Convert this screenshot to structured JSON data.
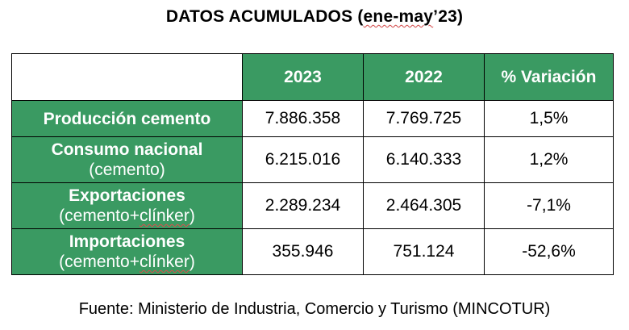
{
  "title": {
    "prefix": "DATOS ACUMULADOS (",
    "period": "ene-may",
    "suffix": "’23)"
  },
  "table": {
    "headers": [
      "",
      "2023",
      "2022",
      "% Variación"
    ],
    "rows": [
      {
        "label": "Producción cemento",
        "sublabel": "",
        "v2023": "7.886.358",
        "v2022": "7.769.725",
        "variation": "1,5%"
      },
      {
        "label": "Consumo nacional",
        "sublabel": "(cemento)",
        "v2023": "6.215.016",
        "v2022": "6.140.333",
        "variation": "1,2%"
      },
      {
        "label": "Exportaciones",
        "sublabel_prefix": "(cemento+",
        "sublabel_word": "clínker",
        "sublabel_suffix": ")",
        "v2023": "2.289.234",
        "v2022": "2.464.305",
        "variation": "-7,1%"
      },
      {
        "label": "Importaciones",
        "sublabel_prefix": "(cemento+",
        "sublabel_word": "clínker",
        "sublabel_suffix": ")",
        "v2023": "355.946",
        "v2022": "751.124",
        "variation": "-52,6%"
      }
    ]
  },
  "source": "Fuente: Ministerio de Industria, Comercio y Turismo (MINCOTUR)",
  "colors": {
    "header_green": "#3a9a62",
    "text_white": "#ffffff",
    "border": "#000000"
  }
}
